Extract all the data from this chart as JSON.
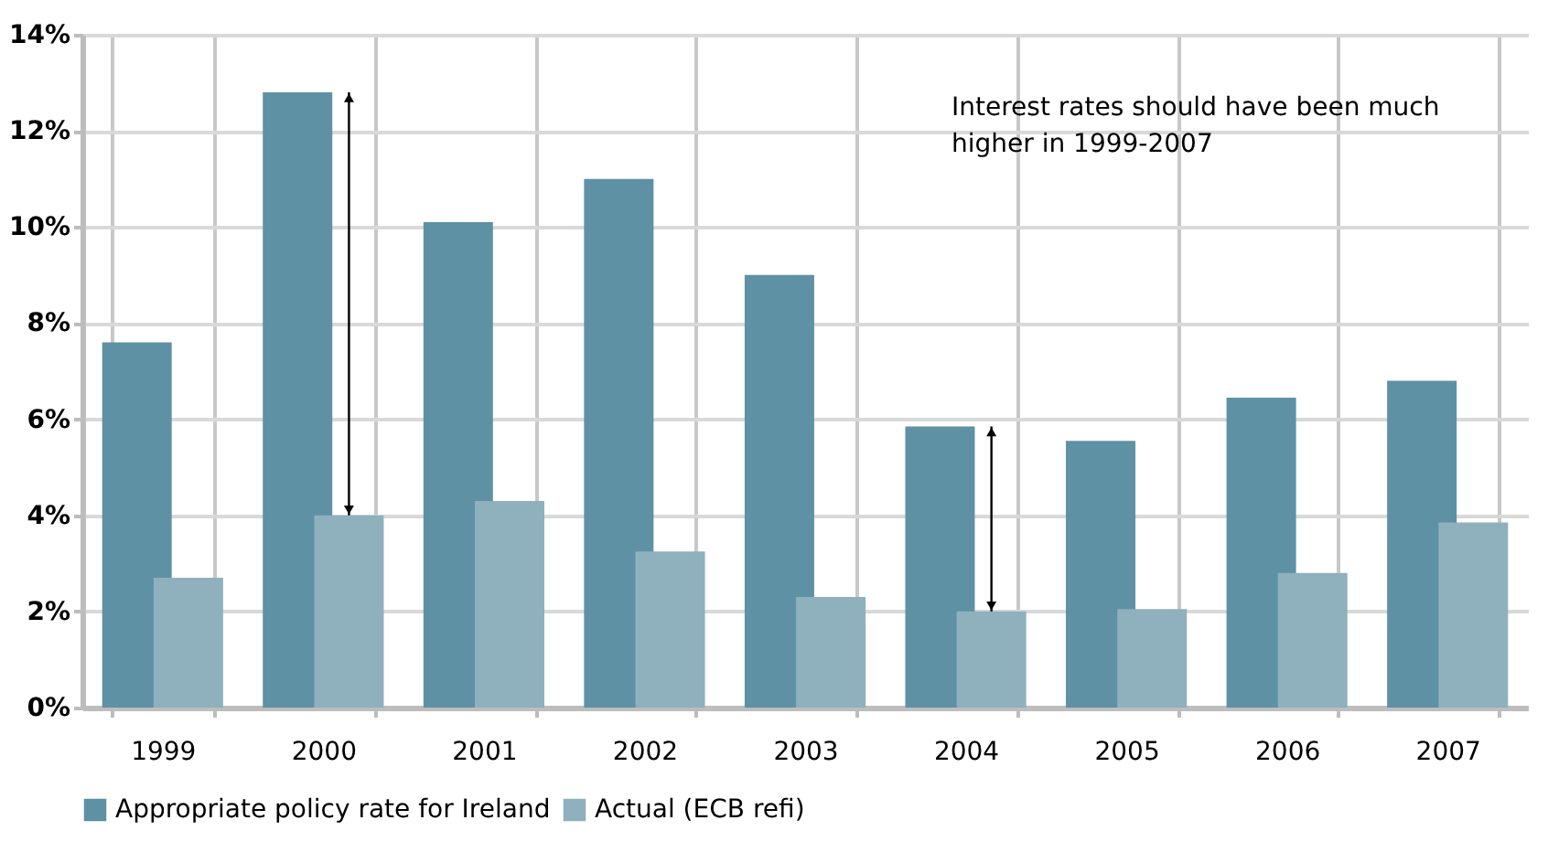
{
  "chart_data": {
    "type": "bar",
    "categories": [
      "1999",
      "2000",
      "2001",
      "2002",
      "2003",
      "2004",
      "2005",
      "2006",
      "2007"
    ],
    "series": [
      {
        "name": "Appropriate policy rate for Ireland",
        "color": "#5e91a4",
        "values": [
          7.6,
          12.8,
          10.1,
          11.0,
          9.0,
          5.85,
          5.55,
          6.45,
          6.8
        ]
      },
      {
        "name": "Actual (ECB refi)",
        "color": "#8fb0bd",
        "values": [
          2.7,
          4.0,
          4.3,
          3.25,
          2.3,
          2.0,
          2.05,
          2.8,
          3.85
        ]
      }
    ],
    "ylim": [
      0,
      14
    ],
    "yticks": [
      {
        "value": 0,
        "label": "0%"
      },
      {
        "value": 2,
        "label": "2%"
      },
      {
        "value": 4,
        "label": "4%"
      },
      {
        "value": 6,
        "label": "6%"
      },
      {
        "value": 8,
        "label": "8%"
      },
      {
        "value": 10,
        "label": "10%"
      },
      {
        "value": 12,
        "label": "12%"
      },
      {
        "value": 14,
        "label": "14%"
      }
    ],
    "annotations": [
      "Interest rates should have been much higher in 1999-2007"
    ],
    "grid": true,
    "legend": "bottom"
  }
}
